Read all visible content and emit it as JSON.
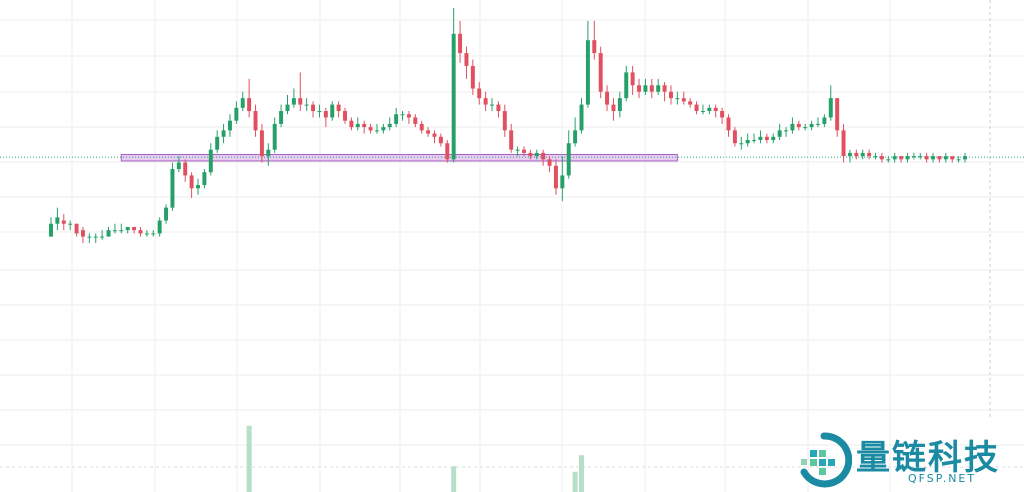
{
  "chart_data": {
    "type": "candlestick",
    "up_color": "#26a069",
    "down_color": "#e0505e",
    "volume_color": "#b7dfc8",
    "zone_color": "#d9a0e8",
    "price_line_color": "#22aa88",
    "grid": true,
    "ylim": [
      0,
      100
    ],
    "x_count": 144,
    "support_zone": {
      "from_index": 11,
      "to_index": 98,
      "low": 52.5,
      "high": 54.5
    },
    "last_price_line": 53.7,
    "candles": [
      [
        29,
        33,
        35,
        29
      ],
      [
        33,
        35,
        38,
        31
      ],
      [
        34,
        33,
        36,
        31
      ],
      [
        33,
        33,
        34,
        31
      ],
      [
        33,
        30,
        33,
        29
      ],
      [
        31,
        29,
        32,
        27
      ],
      [
        29,
        29,
        30,
        27
      ],
      [
        29,
        29,
        30,
        27
      ],
      [
        29,
        29,
        31,
        28
      ],
      [
        29,
        31,
        32,
        29
      ],
      [
        31,
        31,
        33,
        30
      ],
      [
        31,
        31,
        33,
        30
      ],
      [
        31,
        32,
        32,
        30
      ],
      [
        32,
        31,
        32,
        30
      ],
      [
        31,
        30,
        32,
        29
      ],
      [
        30,
        30,
        31,
        29
      ],
      [
        30,
        30,
        31,
        29
      ],
      [
        30,
        34,
        35,
        29
      ],
      [
        34,
        38,
        39,
        33
      ],
      [
        38,
        50,
        52,
        37
      ],
      [
        50,
        52,
        54,
        49
      ],
      [
        52,
        48,
        53,
        46
      ],
      [
        48,
        44,
        49,
        41
      ],
      [
        44,
        45,
        47,
        42
      ],
      [
        45,
        49,
        50,
        44
      ],
      [
        49,
        56,
        58,
        48
      ],
      [
        56,
        60,
        62,
        55
      ],
      [
        60,
        62,
        64,
        58
      ],
      [
        62,
        65,
        67,
        60
      ],
      [
        65,
        69,
        71,
        64
      ],
      [
        69,
        72,
        74,
        68
      ],
      [
        72,
        68,
        78,
        66
      ],
      [
        68,
        62,
        70,
        60
      ],
      [
        62,
        54,
        64,
        52
      ],
      [
        54,
        56,
        58,
        51
      ],
      [
        56,
        64,
        66,
        55
      ],
      [
        64,
        68,
        70,
        63
      ],
      [
        68,
        70,
        73,
        67
      ],
      [
        70,
        72,
        75,
        69
      ],
      [
        72,
        70,
        80,
        68
      ],
      [
        70,
        70,
        72,
        68
      ],
      [
        70,
        68,
        71,
        66
      ],
      [
        68,
        68,
        70,
        66
      ],
      [
        68,
        66,
        69,
        63
      ],
      [
        66,
        70,
        71,
        65
      ],
      [
        70,
        68,
        71,
        66
      ],
      [
        68,
        65,
        69,
        64
      ],
      [
        65,
        63,
        66,
        62
      ],
      [
        63,
        64,
        66,
        62
      ],
      [
        64,
        63,
        65,
        61
      ],
      [
        63,
        62,
        64,
        61
      ],
      [
        62,
        62,
        64,
        61
      ],
      [
        62,
        63,
        64,
        61
      ],
      [
        63,
        64,
        66,
        62
      ],
      [
        64,
        67,
        69,
        63
      ],
      [
        67,
        67,
        68,
        65
      ],
      [
        67,
        66,
        68,
        64
      ],
      [
        66,
        64,
        67,
        63
      ],
      [
        64,
        62,
        65,
        61
      ],
      [
        62,
        61,
        63,
        60
      ],
      [
        61,
        60,
        62,
        58
      ],
      [
        60,
        58,
        61,
        57
      ],
      [
        58,
        53,
        59,
        52
      ],
      [
        53,
        92,
        100,
        52
      ],
      [
        92,
        86,
        96,
        83
      ],
      [
        86,
        82,
        88,
        78
      ],
      [
        82,
        75,
        84,
        73
      ],
      [
        75,
        72,
        77,
        70
      ],
      [
        72,
        70,
        74,
        68
      ],
      [
        70,
        70,
        72,
        68
      ],
      [
        70,
        68,
        71,
        66
      ],
      [
        68,
        62,
        70,
        60
      ],
      [
        62,
        56,
        64,
        55
      ],
      [
        56,
        56,
        57,
        54
      ],
      [
        56,
        55,
        57,
        54
      ],
      [
        55,
        54,
        56,
        53
      ],
      [
        54,
        55,
        56,
        53
      ],
      [
        55,
        53,
        56,
        51
      ],
      [
        53,
        51,
        54,
        49
      ],
      [
        51,
        44,
        53,
        42
      ],
      [
        44,
        48,
        54,
        40
      ],
      [
        48,
        58,
        62,
        47
      ],
      [
        58,
        62,
        66,
        57
      ],
      [
        62,
        70,
        72,
        61
      ],
      [
        70,
        90,
        96,
        69
      ],
      [
        90,
        86,
        96,
        84
      ],
      [
        86,
        74,
        88,
        72
      ],
      [
        74,
        70,
        76,
        68
      ],
      [
        70,
        68,
        72,
        65
      ],
      [
        68,
        72,
        74,
        66
      ],
      [
        72,
        80,
        82,
        71
      ],
      [
        80,
        76,
        82,
        73
      ],
      [
        76,
        74,
        78,
        72
      ],
      [
        74,
        76,
        78,
        73
      ],
      [
        76,
        74,
        78,
        72
      ],
      [
        74,
        76,
        78,
        73
      ],
      [
        76,
        74,
        77,
        71
      ],
      [
        74,
        72,
        76,
        70
      ],
      [
        72,
        72,
        74,
        70
      ],
      [
        72,
        71,
        74,
        70
      ],
      [
        71,
        70,
        72,
        69
      ],
      [
        70,
        68,
        71,
        67
      ],
      [
        68,
        68,
        70,
        67
      ],
      [
        68,
        69,
        70,
        67
      ],
      [
        69,
        68,
        70,
        66
      ],
      [
        68,
        66,
        69,
        64
      ],
      [
        66,
        62,
        67,
        60
      ],
      [
        62,
        58,
        63,
        57
      ],
      [
        58,
        58,
        60,
        56
      ],
      [
        58,
        59,
        61,
        57
      ],
      [
        59,
        59,
        61,
        58
      ],
      [
        59,
        60,
        62,
        58
      ],
      [
        60,
        59,
        61,
        58
      ],
      [
        59,
        60,
        61,
        58
      ],
      [
        60,
        62,
        64,
        59
      ],
      [
        62,
        62,
        63,
        60
      ],
      [
        62,
        64,
        66,
        61
      ],
      [
        64,
        63,
        65,
        62
      ],
      [
        63,
        63,
        64,
        62
      ],
      [
        63,
        64,
        65,
        62
      ],
      [
        64,
        64,
        66,
        63
      ],
      [
        64,
        66,
        67,
        63
      ],
      [
        66,
        72,
        76,
        65
      ],
      [
        72,
        62,
        72,
        60
      ],
      [
        62,
        54,
        64,
        52
      ],
      [
        54,
        55,
        56,
        52
      ],
      [
        55,
        54,
        56,
        53
      ],
      [
        54,
        55,
        56,
        53
      ],
      [
        55,
        54,
        56,
        53
      ],
      [
        54,
        54,
        55,
        53
      ],
      [
        54,
        53,
        55,
        52
      ],
      [
        53,
        53,
        54,
        52
      ],
      [
        53,
        54,
        55,
        52
      ],
      [
        54,
        53,
        54,
        52
      ],
      [
        53,
        54,
        55,
        52
      ],
      [
        54,
        54,
        55,
        53
      ],
      [
        54,
        54,
        55,
        53
      ],
      [
        54,
        53,
        55,
        52
      ],
      [
        53,
        54,
        55,
        52
      ],
      [
        54,
        53,
        54,
        52
      ],
      [
        53,
        54,
        55,
        52
      ],
      [
        54,
        53,
        54,
        52
      ],
      [
        53,
        53,
        54,
        52
      ],
      [
        53,
        54,
        55,
        52
      ]
    ],
    "volume_spikes": [
      {
        "index": 31,
        "level": 0.72
      },
      {
        "index": 63,
        "level": 0.28
      },
      {
        "index": 82,
        "level": 0.22
      },
      {
        "index": 83,
        "level": 0.4
      }
    ]
  },
  "watermark": {
    "title": "量链科技",
    "subtitle": "QFSP.NET",
    "color": "#1b8aa3"
  }
}
